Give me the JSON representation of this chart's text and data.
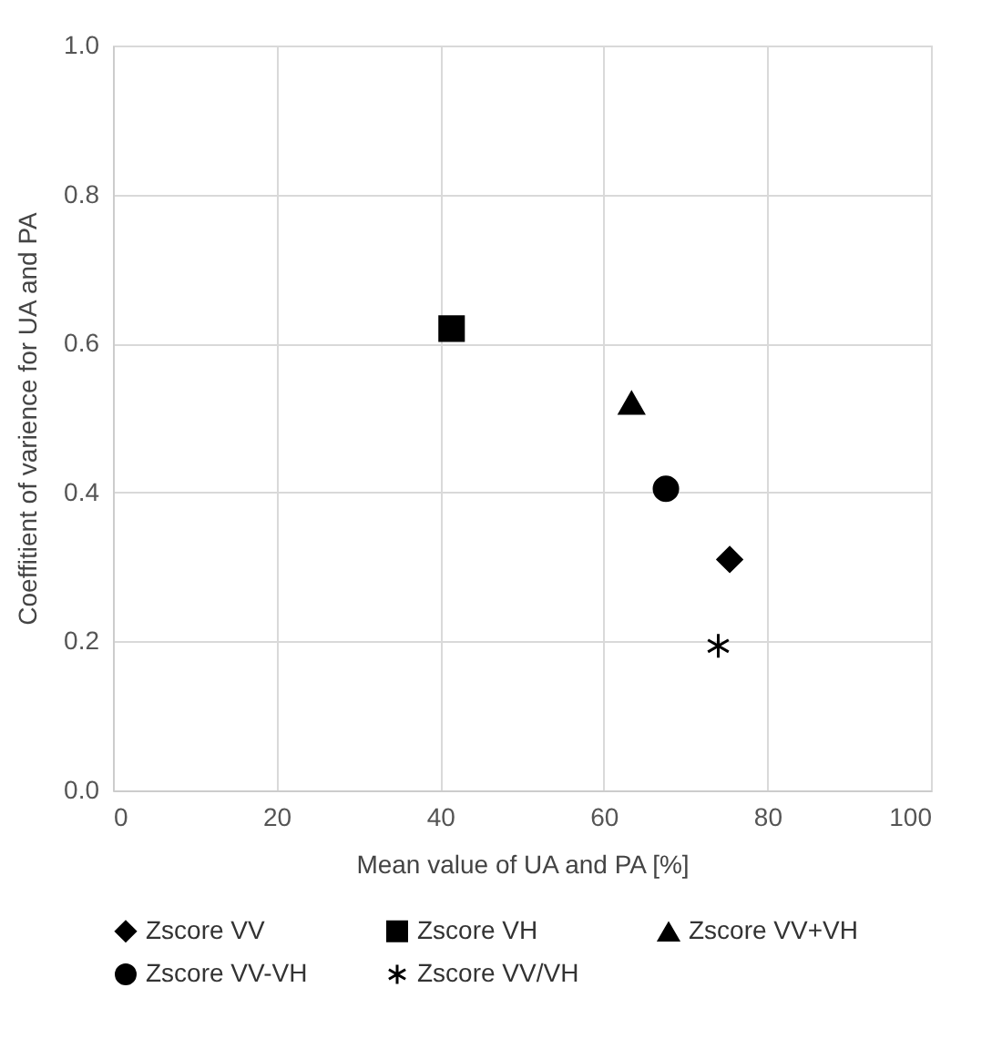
{
  "chart_data": {
    "type": "scatter",
    "xlabel": "Mean value of UA and PA [%]",
    "ylabel": "Coeffitient of varience for UA and PA",
    "xlim": [
      0,
      100
    ],
    "xticks": [
      0,
      20,
      40,
      60,
      80,
      100
    ],
    "ylim": [
      0,
      1
    ],
    "yticks": [
      {
        "value": 0,
        "label": "0.0"
      },
      0.2,
      0.4,
      0.6,
      0.8,
      {
        "value": 1,
        "label": "1.0"
      }
    ],
    "grid": true,
    "legend": "bottom",
    "series": [
      {
        "name": "Zscore VV",
        "color": "#000000",
        "marker": "diamond",
        "x": [
          75.4
        ],
        "values": [
          0.31
        ]
      },
      {
        "name": "Zscore VH",
        "color": "#000000",
        "marker": "square",
        "x": [
          41.4
        ],
        "values": [
          0.62
        ]
      },
      {
        "name": "Zscore VV+VH",
        "color": "#000000",
        "marker": "triangle",
        "x": [
          63.4
        ],
        "values": [
          0.52
        ]
      },
      {
        "name": "Zscore VV-VH",
        "color": "#000000",
        "marker": "circle",
        "x": [
          67.6
        ],
        "values": [
          0.405
        ]
      },
      {
        "name": "Zscore VV/VH",
        "color": "#000000",
        "marker": "cross",
        "x": [
          74.0
        ],
        "values": [
          0.194
        ]
      }
    ]
  }
}
